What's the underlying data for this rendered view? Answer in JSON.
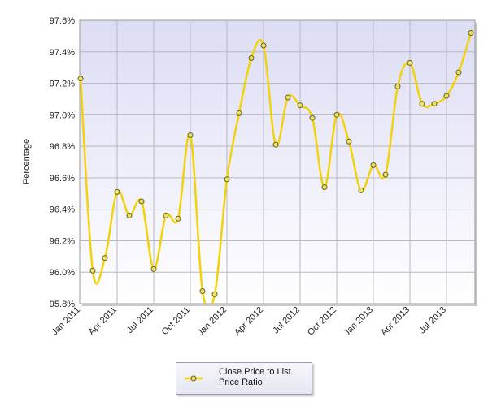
{
  "chart_data": {
    "type": "line",
    "title": "",
    "xlabel": "",
    "ylabel": "Percentage",
    "ylim": [
      95.8,
      97.6
    ],
    "y_ticks": [
      "95.8%",
      "96.0%",
      "96.2%",
      "96.4%",
      "96.6%",
      "96.8%",
      "97.0%",
      "97.2%",
      "97.4%",
      "97.6%"
    ],
    "x_ticks": [
      "Jan 2011",
      "Apr 2011",
      "Jul 2011",
      "Oct 2011",
      "Jan 2012",
      "Apr 2012",
      "Jul 2012",
      "Oct 2012",
      "Jan 2013",
      "Apr 2013",
      "Jul 2013"
    ],
    "x": [
      "Jan 2011",
      "Feb 2011",
      "Mar 2011",
      "Apr 2011",
      "May 2011",
      "Jun 2011",
      "Jul 2011",
      "Aug 2011",
      "Sep 2011",
      "Oct 2011",
      "Nov 2011",
      "Dec 2011",
      "Jan 2012",
      "Feb 2012",
      "Mar 2012",
      "Apr 2012",
      "May 2012",
      "Jun 2012",
      "Jul 2012",
      "Aug 2012",
      "Sep 2012",
      "Oct 2012",
      "Nov 2012",
      "Dec 2012",
      "Jan 2013",
      "Feb 2013",
      "Mar 2013",
      "Apr 2013",
      "May 2013",
      "Jun 2013",
      "Jul 2013",
      "Aug 2013",
      "Sep 2013"
    ],
    "series": [
      {
        "name": "Close Price to List Price Ratio",
        "color": "#f2d20a",
        "values": [
          97.23,
          96.01,
          96.09,
          96.51,
          96.36,
          96.45,
          96.02,
          96.36,
          96.34,
          96.87,
          95.88,
          95.86,
          96.59,
          97.01,
          97.36,
          97.44,
          96.81,
          97.11,
          97.06,
          96.98,
          96.54,
          97.0,
          96.83,
          96.52,
          96.68,
          96.62,
          97.18,
          97.33,
          97.07,
          97.07,
          97.12,
          97.27,
          97.52
        ]
      }
    ],
    "grid": true,
    "legend_position": "bottom-center",
    "plot_background": "#e7e7f7"
  },
  "legend": {
    "label": "Close Price to List Price Ratio"
  }
}
